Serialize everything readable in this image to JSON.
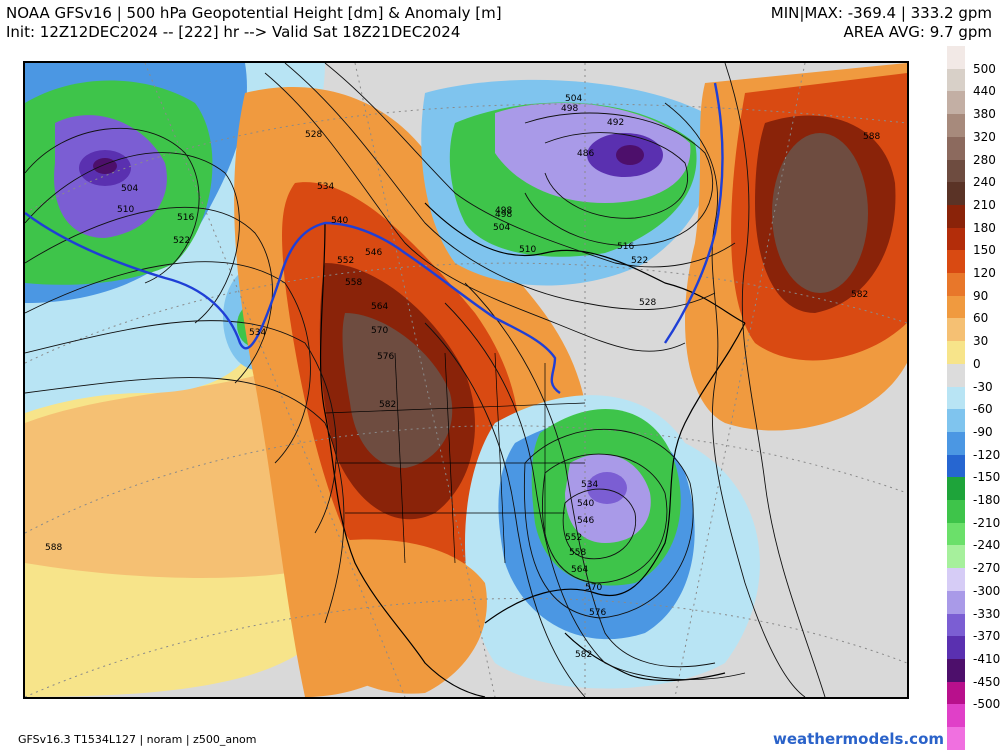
{
  "header": {
    "title_line1": "NOAA GFSv16 |  500 hPa Geopotential Height [dm] & Anomaly [m]",
    "title_line2": "Init: 12Z12DEC2024 -- [222] hr --> Valid Sat 18Z21DEC2024",
    "minmax": "MIN|MAX: -369.4 | 333.2 gpm",
    "area_avg": "AREA AVG: 9.7 gpm"
  },
  "legend": {
    "labels": [
      "500",
      "440",
      "380",
      "320",
      "280",
      "240",
      "210",
      "180",
      "150",
      "120",
      "90",
      "60",
      "30",
      "0",
      "-30",
      "-60",
      "-90",
      "-120",
      "-150",
      "-180",
      "-210",
      "-240",
      "-270",
      "-300",
      "-330",
      "-370",
      "-410",
      "-450",
      "-500"
    ],
    "colors": [
      "#f2e9e6",
      "#d8d0c8",
      "#c3afa4",
      "#a78a7c",
      "#8c6a5e",
      "#6e4c40",
      "#5a3326",
      "#8a2309",
      "#b32d0a",
      "#d94a12",
      "#e8772a",
      "#f09a3f",
      "#f5c073",
      "#f7e48a",
      "#dcdcdc",
      "#b8e4f4",
      "#7fc4ee",
      "#4b97e3",
      "#2666d1",
      "#1ea43a",
      "#3ec44a",
      "#6be06a",
      "#a6f09c",
      "#d6ccf6",
      "#a99ae8",
      "#7b5ed3",
      "#5a30b0",
      "#4d0f6b",
      "#b8108c",
      "#e040c8",
      "#f070e0"
    ]
  },
  "contour_labels": [
    {
      "t": "504"
    },
    {
      "t": "510"
    },
    {
      "t": "516"
    },
    {
      "t": "522"
    },
    {
      "t": "528"
    },
    {
      "t": "534"
    },
    {
      "t": "540"
    },
    {
      "t": "546"
    },
    {
      "t": "552"
    },
    {
      "t": "558"
    },
    {
      "t": "564"
    },
    {
      "t": "570"
    },
    {
      "t": "576"
    },
    {
      "t": "582"
    },
    {
      "t": "534"
    },
    {
      "t": "588"
    },
    {
      "t": "504"
    },
    {
      "t": "498"
    },
    {
      "t": "492"
    },
    {
      "t": "486"
    },
    {
      "t": "498"
    },
    {
      "t": "504"
    },
    {
      "t": "510"
    },
    {
      "t": "516"
    },
    {
      "t": "522"
    },
    {
      "t": "528"
    },
    {
      "t": "588"
    },
    {
      "t": "582"
    },
    {
      "t": "534"
    },
    {
      "t": "540"
    },
    {
      "t": "546"
    },
    {
      "t": "552"
    },
    {
      "t": "558"
    },
    {
      "t": "564"
    },
    {
      "t": "570"
    },
    {
      "t": "576"
    },
    {
      "t": "582"
    },
    {
      "t": "498"
    }
  ],
  "footer": {
    "left": "GFSv16.3 T1534L127 | noram | z500_anom",
    "right": "weathermodels.com"
  }
}
